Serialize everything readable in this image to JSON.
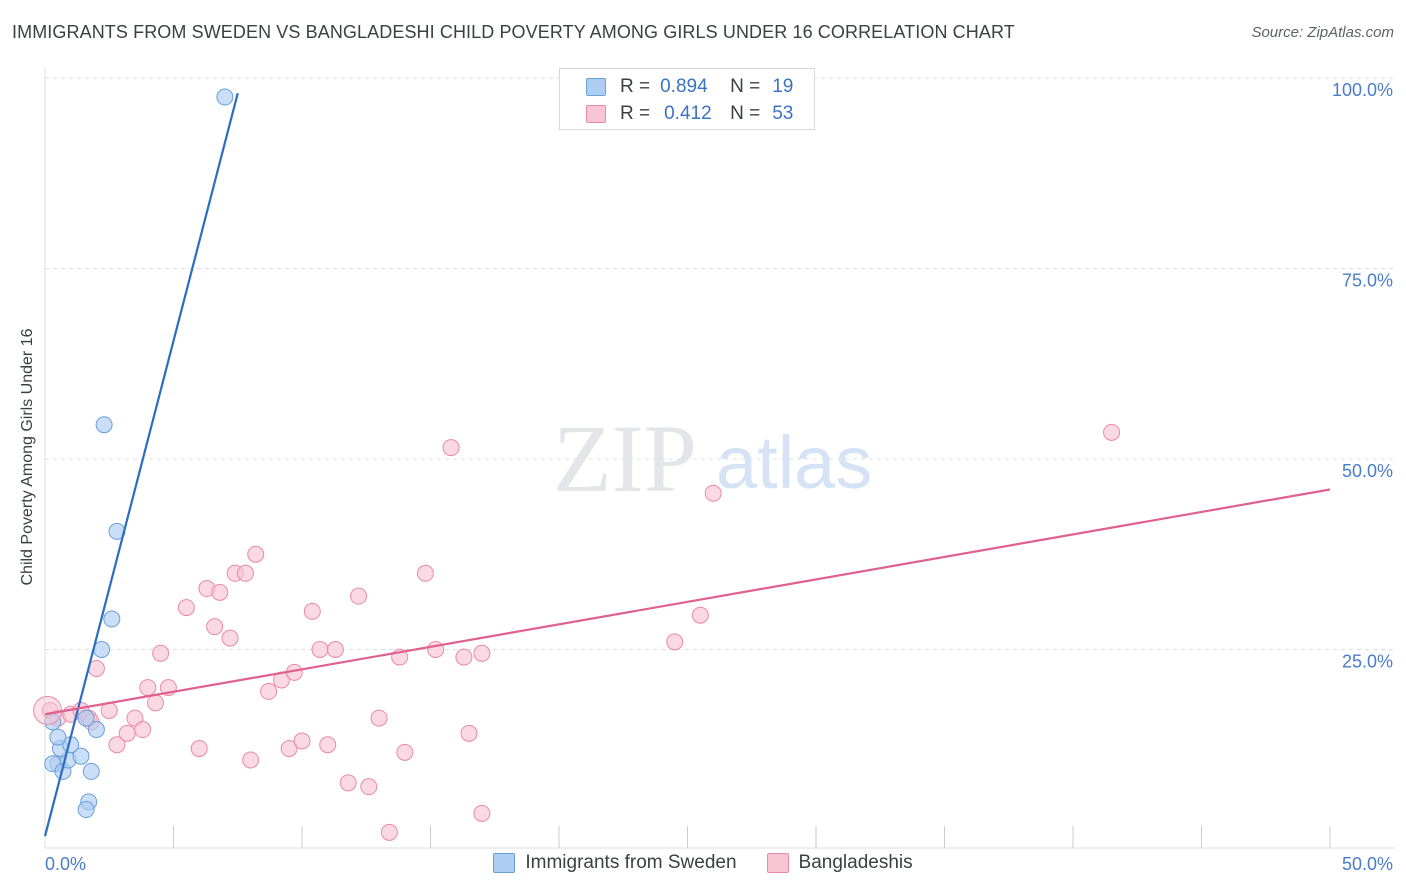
{
  "chart_data": {
    "type": "scatter",
    "title": "IMMIGRANTS FROM SWEDEN VS BANGLADESHI CHILD POVERTY AMONG GIRLS UNDER 16 CORRELATION CHART",
    "source": "Source: ZipAtlas.com",
    "xlabel": "",
    "ylabel": "Child Poverty Among Girls Under 16",
    "xlim": [
      0,
      50
    ],
    "ylim": [
      0,
      100
    ],
    "x_tick_labels": [
      "0.0%",
      "50.0%"
    ],
    "y_tick_labels": [
      {
        "value": 25,
        "label": "25.0%"
      },
      {
        "value": 50,
        "label": "50.0%"
      },
      {
        "value": 75,
        "label": "75.0%"
      },
      {
        "value": 100,
        "label": "100.0%"
      }
    ],
    "watermark": {
      "zip": "ZIP",
      "atlas": "atlas"
    },
    "stats": [
      {
        "r_label": "R =",
        "r": "0.894",
        "n_label": "N =",
        "n": "19"
      },
      {
        "r_label": "R =",
        "r": "0.412",
        "n_label": "N =",
        "n": "53"
      }
    ],
    "colors": {
      "sweden_fill": "#aecdf2",
      "sweden_stroke": "#6a9fd8",
      "sweden_line": "#2b6cc4",
      "bangla_fill": "#f7c5d3",
      "bangla_stroke": "#e98aa8",
      "bangla_line": "#e06090",
      "tick_text": "#4a7cc9",
      "grid": "#dadce0"
    },
    "series": [
      {
        "name": "Immigrants from Sweden",
        "trend": {
          "x0": 0,
          "y0": 0.5,
          "x1": 7.5,
          "y1": 98
        },
        "points": [
          [
            7.0,
            97.5
          ],
          [
            2.3,
            54.5
          ],
          [
            2.8,
            40.5
          ],
          [
            2.6,
            29
          ],
          [
            2.2,
            25
          ],
          [
            0.5,
            10
          ],
          [
            0.3,
            10
          ],
          [
            0.7,
            9
          ],
          [
            1.8,
            9
          ],
          [
            0.9,
            10.5
          ],
          [
            1.4,
            11
          ],
          [
            0.6,
            12
          ],
          [
            1.0,
            12.5
          ],
          [
            0.5,
            13.5
          ],
          [
            2.0,
            14.5
          ],
          [
            1.6,
            16
          ],
          [
            0.3,
            15.5
          ],
          [
            1.7,
            5
          ],
          [
            1.6,
            4
          ]
        ]
      },
      {
        "name": "Bangladeshis",
        "trend": {
          "x0": 0,
          "y0": 16.5,
          "x1": 50,
          "y1": 46
        },
        "points": [
          [
            0.2,
            17
          ],
          [
            0.5,
            16
          ],
          [
            1.0,
            16.5
          ],
          [
            1.4,
            17
          ],
          [
            1.7,
            16
          ],
          [
            1.8,
            15.5
          ],
          [
            2.0,
            22.5
          ],
          [
            2.5,
            17
          ],
          [
            2.8,
            12.5
          ],
          [
            3.2,
            14
          ],
          [
            3.5,
            16
          ],
          [
            3.8,
            14.5
          ],
          [
            4.0,
            20
          ],
          [
            4.3,
            18
          ],
          [
            4.5,
            24.5
          ],
          [
            4.8,
            20
          ],
          [
            5.5,
            30.5
          ],
          [
            6.0,
            12
          ],
          [
            6.3,
            33
          ],
          [
            6.6,
            28
          ],
          [
            6.8,
            32.5
          ],
          [
            7.2,
            26.5
          ],
          [
            7.4,
            35
          ],
          [
            7.8,
            35
          ],
          [
            8.0,
            10.5
          ],
          [
            8.2,
            37.5
          ],
          [
            8.7,
            19.5
          ],
          [
            9.2,
            21
          ],
          [
            9.5,
            12
          ],
          [
            9.7,
            22
          ],
          [
            10.0,
            13
          ],
          [
            10.4,
            30
          ],
          [
            10.7,
            25
          ],
          [
            11.0,
            12.5
          ],
          [
            11.3,
            25
          ],
          [
            11.8,
            7.5
          ],
          [
            12.2,
            32
          ],
          [
            12.6,
            7
          ],
          [
            13.0,
            16
          ],
          [
            13.4,
            1
          ],
          [
            13.8,
            24
          ],
          [
            14.0,
            11.5
          ],
          [
            14.8,
            35
          ],
          [
            15.2,
            25
          ],
          [
            15.8,
            51.5
          ],
          [
            16.3,
            24
          ],
          [
            16.5,
            14
          ],
          [
            17.0,
            3.5
          ],
          [
            17.0,
            24.5
          ],
          [
            24.5,
            26
          ],
          [
            25.5,
            29.5
          ],
          [
            26.0,
            45.5
          ],
          [
            41.5,
            53.5
          ]
        ]
      }
    ]
  },
  "legend": [
    "Immigrants from Sweden",
    "Bangladeshis"
  ]
}
